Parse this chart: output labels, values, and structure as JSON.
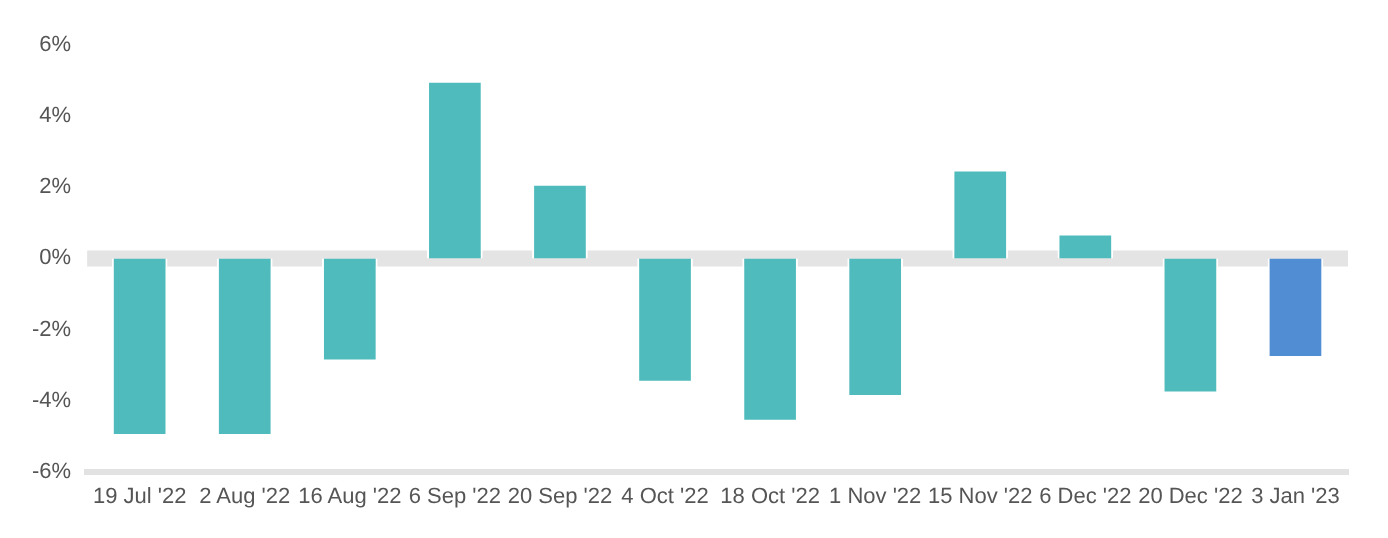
{
  "chart_data": {
    "type": "bar",
    "categories": [
      "19 Jul '22",
      "2 Aug '22",
      "16 Aug '22",
      "6 Sep '22",
      "20 Sep '22",
      "4 Oct '22",
      "18 Oct '22",
      "1 Nov '22",
      "15 Nov '22",
      "6 Dec '22",
      "20 Dec '22",
      "3 Jan '23"
    ],
    "values": [
      -5.0,
      -5.0,
      -2.9,
      5.0,
      2.1,
      -3.5,
      -4.6,
      -3.9,
      2.5,
      0.7,
      -3.8,
      -2.8
    ],
    "colors": [
      "#4fbbbc",
      "#4fbbbc",
      "#4fbbbc",
      "#4fbbbc",
      "#4fbbbc",
      "#4fbbbc",
      "#4fbbbc",
      "#4fbbbc",
      "#4fbbbc",
      "#4fbbbc",
      "#4fbbbc",
      "#518dd2"
    ],
    "ylim": [
      -6,
      6
    ],
    "yticks": [
      {
        "value": -6,
        "label": "-6%"
      },
      {
        "value": -4,
        "label": "-4%"
      },
      {
        "value": -2,
        "label": "-2%"
      },
      {
        "value": 0,
        "label": "0%"
      },
      {
        "value": 2,
        "label": "2%"
      },
      {
        "value": 4,
        "label": "4%"
      },
      {
        "value": 6,
        "label": "6%"
      }
    ],
    "ref_lines": [
      {
        "axis": "y",
        "value": 0,
        "color": "#e4e4e4"
      }
    ],
    "grid": false,
    "legend": false
  }
}
